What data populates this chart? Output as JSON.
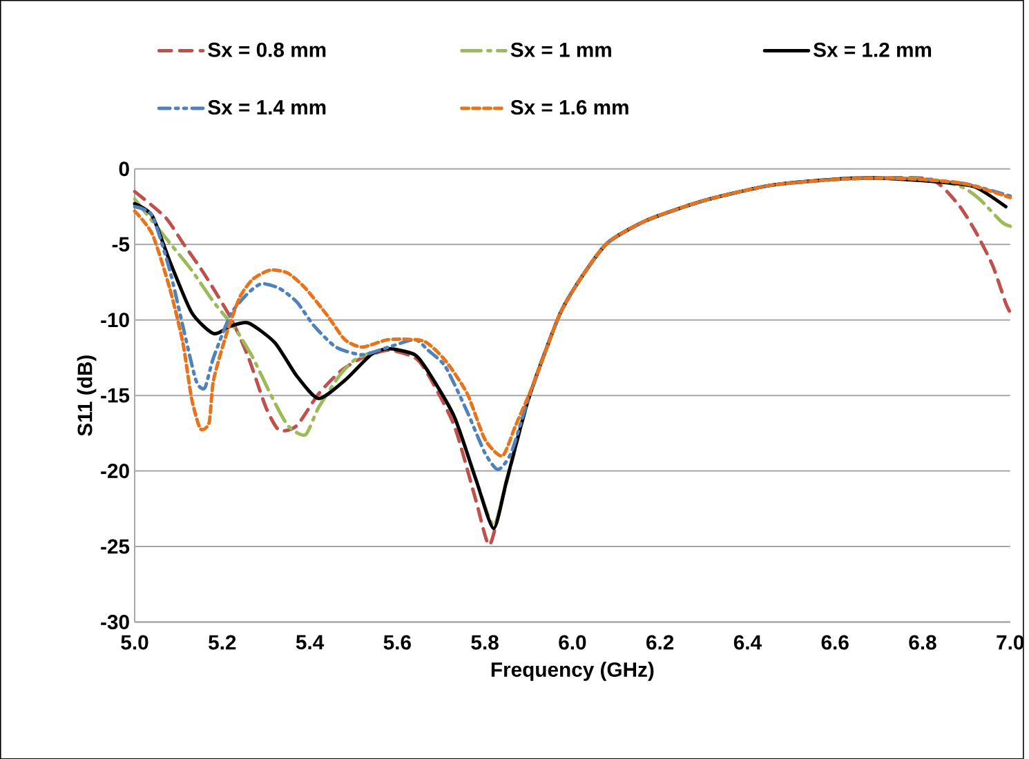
{
  "chart_data": {
    "type": "line",
    "xlabel": "Frequency (GHz)",
    "ylabel": "S11 (dB)",
    "xlim": [
      5.0,
      7.0
    ],
    "ylim": [
      -30,
      0
    ],
    "xticks": [
      {
        "value": 5.0,
        "label": "5.0"
      },
      {
        "value": 5.2,
        "label": "5.2"
      },
      {
        "value": 5.4,
        "label": "5.4"
      },
      {
        "value": 5.6,
        "label": "5.6"
      },
      {
        "value": 5.8,
        "label": "5.8"
      },
      {
        "value": 6.0,
        "label": "6.0"
      },
      {
        "value": 6.2,
        "label": "6.2"
      },
      {
        "value": 6.4,
        "label": "6.4"
      },
      {
        "value": 6.6,
        "label": "6.6"
      },
      {
        "value": 6.8,
        "label": "6.8"
      },
      {
        "value": 7.0,
        "label": "7.0"
      }
    ],
    "yticks": [
      0,
      -5,
      -10,
      -15,
      -20,
      -25,
      -30
    ],
    "grid": "y",
    "legend": "top",
    "marker": "none",
    "series": [
      {
        "name": "Sx = 0.8 mm",
        "color": "#c0504d",
        "line_style": "dashed",
        "x": [
          5.0,
          5.07,
          5.11,
          5.16,
          5.22,
          5.26,
          5.3,
          5.33,
          5.37,
          5.42,
          5.47,
          5.52,
          5.58,
          5.64,
          5.67,
          5.73,
          5.78,
          5.81,
          5.84,
          5.9,
          5.97,
          6.02,
          6.08,
          6.17,
          6.3,
          6.45,
          6.6,
          6.7,
          6.82,
          6.88,
          6.92,
          6.96,
          6.99,
          7.0
        ],
        "values": [
          -1.5,
          -3.2,
          -4.9,
          -7.0,
          -9.9,
          -12.5,
          -15.8,
          -17.3,
          -17.0,
          -14.9,
          -13.4,
          -12.5,
          -12.0,
          -12.5,
          -13.6,
          -17.0,
          -22.0,
          -24.9,
          -21.8,
          -15.2,
          -9.7,
          -7.2,
          -4.9,
          -3.4,
          -2.1,
          -1.1,
          -0.7,
          -0.6,
          -0.7,
          -2.3,
          -4.1,
          -6.4,
          -8.9,
          -9.5
        ]
      },
      {
        "name": "Sx = 1 mm",
        "color": "#9bbb59",
        "line_style": "dashed",
        "x": [
          5.0,
          5.08,
          5.13,
          5.18,
          5.23,
          5.27,
          5.31,
          5.35,
          5.39,
          5.42,
          5.47,
          5.51,
          5.58,
          5.64,
          5.67,
          5.73,
          5.78,
          5.82,
          5.85,
          5.9,
          5.97,
          6.02,
          6.08,
          6.17,
          6.3,
          6.45,
          6.6,
          6.7,
          6.82,
          6.89,
          6.93,
          6.98,
          7.0
        ],
        "values": [
          -2.0,
          -4.9,
          -6.7,
          -8.8,
          -10.6,
          -12.5,
          -14.9,
          -17.0,
          -17.6,
          -15.8,
          -13.6,
          -12.5,
          -11.9,
          -12.3,
          -13.4,
          -16.4,
          -20.6,
          -23.6,
          -20.6,
          -15.2,
          -9.7,
          -7.2,
          -4.9,
          -3.4,
          -2.1,
          -1.1,
          -0.7,
          -0.6,
          -0.7,
          -1.2,
          -2.0,
          -3.5,
          -3.8
        ]
      },
      {
        "name": "Sx = 1.2 mm",
        "color": "#000000",
        "line_style": "solid",
        "x": [
          5.0,
          5.04,
          5.08,
          5.13,
          5.18,
          5.22,
          5.26,
          5.32,
          5.37,
          5.42,
          5.48,
          5.54,
          5.58,
          5.64,
          5.67,
          5.73,
          5.78,
          5.82,
          5.85,
          5.9,
          5.97,
          6.02,
          6.08,
          6.17,
          6.3,
          6.45,
          6.59,
          6.7,
          6.85,
          6.92,
          6.99
        ],
        "values": [
          -2.3,
          -3.1,
          -6.1,
          -9.5,
          -10.9,
          -10.4,
          -10.2,
          -11.5,
          -13.7,
          -15.2,
          -14.0,
          -12.3,
          -11.9,
          -12.3,
          -13.4,
          -16.4,
          -20.6,
          -23.8,
          -20.6,
          -15.2,
          -9.7,
          -7.2,
          -4.9,
          -3.4,
          -2.1,
          -1.1,
          -0.7,
          -0.6,
          -0.9,
          -1.2,
          -2.5
        ]
      },
      {
        "name": "Sx = 1.4 mm",
        "color": "#4f81bd",
        "line_style": "dashed",
        "x": [
          5.0,
          5.04,
          5.08,
          5.11,
          5.14,
          5.16,
          5.18,
          5.22,
          5.26,
          5.29,
          5.33,
          5.37,
          5.41,
          5.46,
          5.52,
          5.58,
          5.64,
          5.67,
          5.71,
          5.76,
          5.8,
          5.83,
          5.86,
          5.9,
          5.97,
          6.02,
          6.08,
          6.17,
          6.3,
          6.45,
          6.6,
          6.7,
          6.8,
          6.9,
          7.0
        ],
        "values": [
          -2.5,
          -3.1,
          -6.7,
          -10.4,
          -14.0,
          -14.5,
          -12.5,
          -9.6,
          -8.2,
          -7.6,
          -7.9,
          -8.8,
          -10.4,
          -11.8,
          -12.3,
          -11.8,
          -11.3,
          -12.0,
          -13.1,
          -16.1,
          -18.8,
          -19.9,
          -18.8,
          -15.2,
          -9.7,
          -7.2,
          -4.9,
          -3.4,
          -2.1,
          -1.1,
          -0.7,
          -0.6,
          -0.7,
          -1.0,
          -1.8
        ]
      },
      {
        "name": "Sx = 1.6 mm",
        "color": "#e8731a",
        "line_style": "dashed",
        "x": [
          5.0,
          5.04,
          5.08,
          5.11,
          5.13,
          5.15,
          5.17,
          5.18,
          5.21,
          5.24,
          5.27,
          5.31,
          5.35,
          5.39,
          5.44,
          5.48,
          5.52,
          5.58,
          5.66,
          5.71,
          5.76,
          5.8,
          5.84,
          5.87,
          5.91,
          5.97,
          6.02,
          6.08,
          6.17,
          6.3,
          6.45,
          6.6,
          6.7,
          6.8,
          6.9,
          7.0
        ],
        "values": [
          -2.8,
          -4.3,
          -7.9,
          -11.5,
          -15.2,
          -17.2,
          -16.8,
          -14.0,
          -10.9,
          -8.5,
          -7.3,
          -6.7,
          -6.9,
          -7.9,
          -9.7,
          -11.3,
          -11.8,
          -11.3,
          -11.4,
          -12.7,
          -14.9,
          -17.9,
          -19.0,
          -17.0,
          -14.3,
          -9.7,
          -7.2,
          -4.9,
          -3.4,
          -2.1,
          -1.1,
          -0.7,
          -0.6,
          -0.7,
          -1.0,
          -1.9
        ]
      }
    ]
  }
}
